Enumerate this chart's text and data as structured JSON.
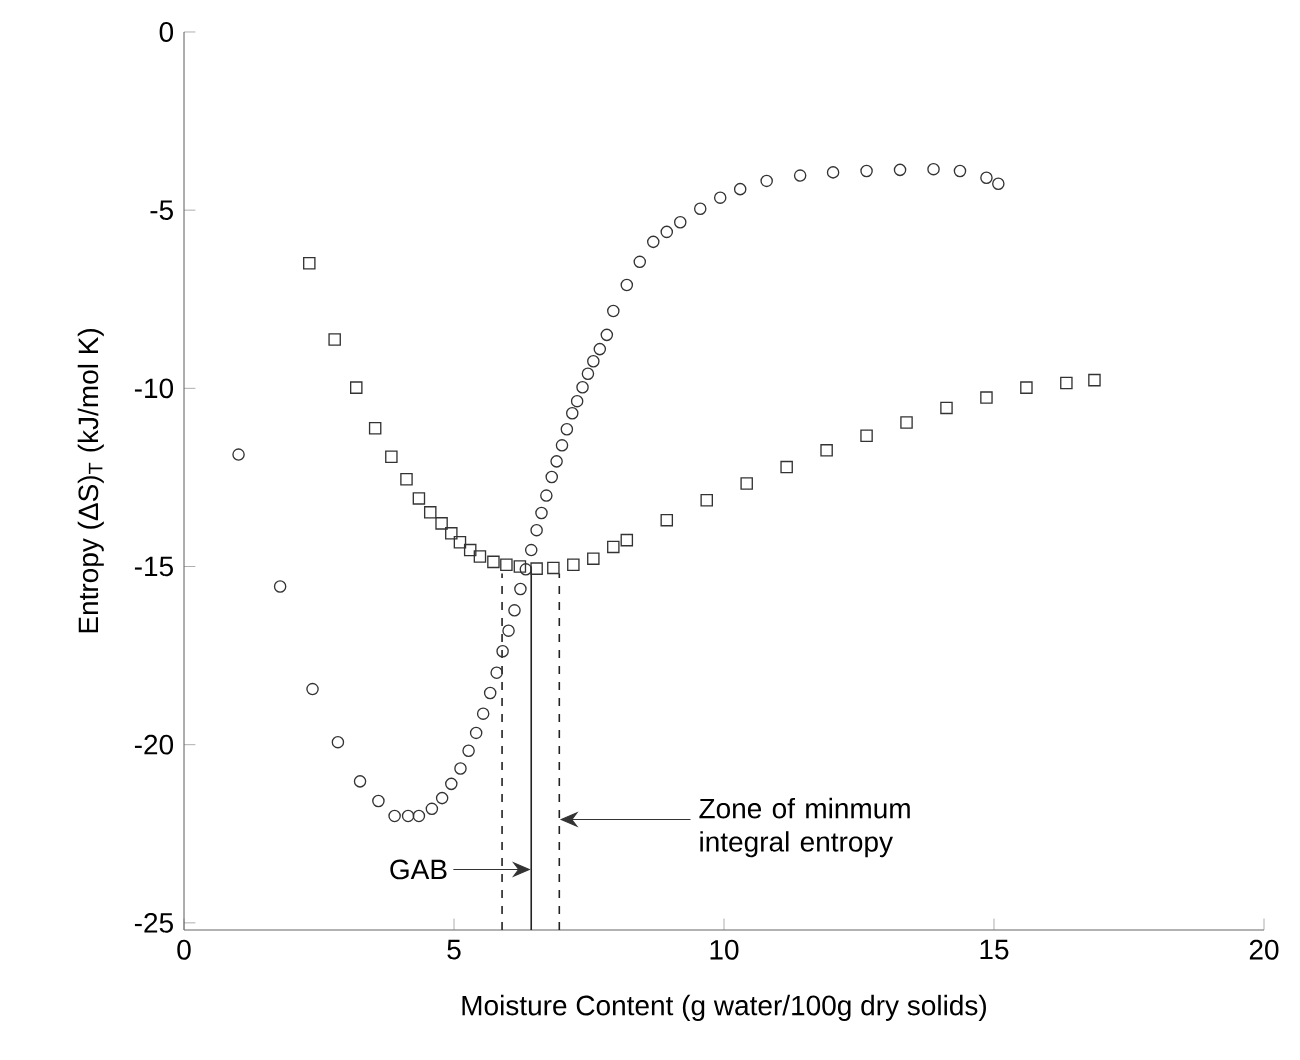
{
  "chart_data": {
    "type": "scatter",
    "xlabel": "Moisture Content (g water/100g dry solids)",
    "ylabel": "Entropy  (ΔS)$_{T}$ (kJ/mol K)",
    "xlim": [
      0,
      20
    ],
    "ylim": [
      -25.2,
      0
    ],
    "xticks": [
      0,
      5,
      10,
      15,
      20
    ],
    "yticks": [
      -25,
      -20,
      -15,
      -10,
      -5,
      0
    ],
    "grid": false,
    "series": [
      {
        "marker": "circle",
        "color": "#333333",
        "x": [
          1.01,
          1.78,
          2.38,
          2.85,
          3.26,
          3.6,
          3.9,
          4.15,
          4.35,
          4.59,
          4.78,
          4.95,
          5.12,
          5.27,
          5.41,
          5.54,
          5.67,
          5.79,
          5.9,
          6.01,
          6.12,
          6.23,
          6.33,
          6.43,
          6.53,
          6.62,
          6.71,
          6.81,
          6.9,
          7.0,
          7.09,
          7.19,
          7.28,
          7.38,
          7.48,
          7.58,
          7.7,
          7.83,
          7.95,
          8.2,
          8.44,
          8.69,
          8.94,
          9.19,
          9.56,
          9.93,
          10.3,
          10.79,
          11.41,
          12.02,
          12.64,
          13.26,
          13.88,
          14.37,
          14.86,
          15.08
        ],
        "values": [
          -11.86,
          -15.56,
          -18.44,
          -19.93,
          -21.03,
          -21.58,
          -22.0,
          -22.0,
          -22.0,
          -21.8,
          -21.5,
          -21.1,
          -20.67,
          -20.17,
          -19.67,
          -19.13,
          -18.55,
          -17.98,
          -17.38,
          -16.8,
          -16.23,
          -15.63,
          -15.08,
          -14.54,
          -13.98,
          -13.5,
          -13.01,
          -12.49,
          -12.05,
          -11.6,
          -11.15,
          -10.7,
          -10.36,
          -9.97,
          -9.59,
          -9.24,
          -8.9,
          -8.5,
          -7.83,
          -7.1,
          -6.45,
          -5.89,
          -5.61,
          -5.34,
          -4.96,
          -4.65,
          -4.41,
          -4.18,
          -4.03,
          -3.94,
          -3.9,
          -3.87,
          -3.85,
          -3.9,
          -4.09,
          -4.26
        ]
      },
      {
        "marker": "square",
        "color": "#333333",
        "x": [
          2.32,
          2.79,
          3.19,
          3.54,
          3.84,
          4.12,
          4.35,
          4.56,
          4.77,
          4.95,
          5.11,
          5.3,
          5.48,
          5.73,
          5.97,
          6.22,
          6.53,
          6.84,
          7.21,
          7.58,
          7.95,
          8.2,
          8.94,
          9.68,
          10.42,
          11.16,
          11.9,
          12.64,
          13.38,
          14.12,
          14.86,
          15.6,
          16.34,
          16.86
        ],
        "values": [
          -6.49,
          -8.63,
          -9.98,
          -11.12,
          -11.92,
          -12.55,
          -13.09,
          -13.48,
          -13.79,
          -14.07,
          -14.32,
          -14.54,
          -14.72,
          -14.87,
          -14.95,
          -15.0,
          -15.06,
          -15.04,
          -14.95,
          -14.78,
          -14.45,
          -14.26,
          -13.7,
          -13.14,
          -12.67,
          -12.21,
          -11.74,
          -11.33,
          -10.96,
          -10.55,
          -10.26,
          -9.98,
          -9.85,
          -9.77
        ]
      },
      {
        "type": "line",
        "marker": "none",
        "line_style": "dashed",
        "color": "#222222",
        "x": [
          5.89,
          5.89
        ],
        "values": [
          -25.2,
          -15.2
        ]
      },
      {
        "type": "line",
        "marker": "none",
        "line_style": "solid",
        "color": "#222222",
        "x": [
          6.43,
          6.43
        ],
        "values": [
          -25.2,
          -15.0
        ]
      },
      {
        "type": "line",
        "marker": "none",
        "line_style": "dashed",
        "color": "#222222",
        "x": [
          6.95,
          6.95
        ],
        "values": [
          -25.2,
          -15.2
        ]
      }
    ],
    "annotations": [
      "GAB",
      "Zone of minmum integral entropy"
    ]
  }
}
